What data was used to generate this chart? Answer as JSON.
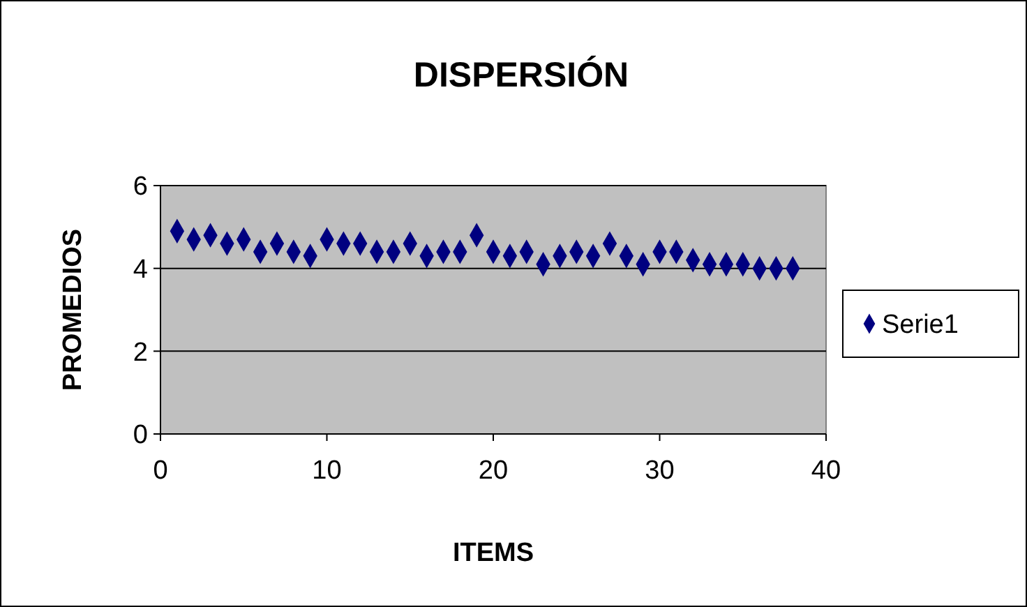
{
  "chart_data": {
    "type": "scatter",
    "title": "DISPERSIÓN",
    "xlabel": "ITEMS",
    "ylabel": "PROMEDIOS",
    "x": [
      1,
      2,
      3,
      4,
      5,
      6,
      7,
      8,
      9,
      10,
      11,
      12,
      13,
      14,
      15,
      16,
      17,
      18,
      19,
      20,
      21,
      22,
      23,
      24,
      25,
      26,
      27,
      28,
      29,
      30,
      31,
      32,
      33,
      34,
      35,
      36,
      37,
      38
    ],
    "series": [
      {
        "name": "Serie1",
        "color": "#000080",
        "values": [
          4.9,
          4.7,
          4.8,
          4.6,
          4.7,
          4.4,
          4.6,
          4.4,
          4.3,
          4.7,
          4.6,
          4.6,
          4.4,
          4.4,
          4.6,
          4.3,
          4.4,
          4.4,
          4.8,
          4.4,
          4.3,
          4.4,
          4.1,
          4.3,
          4.4,
          4.3,
          4.6,
          4.3,
          4.1,
          4.4,
          4.4,
          4.2,
          4.1,
          4.1,
          4.1,
          4.0,
          4.0,
          4.0
        ]
      }
    ],
    "xlim": [
      0,
      40
    ],
    "xticks": [
      0,
      10,
      20,
      30,
      40
    ],
    "ylim": [
      0,
      6
    ],
    "yticks": [
      0,
      2,
      4,
      6
    ],
    "grid": "y",
    "legend": "right",
    "marker": "diamond"
  }
}
